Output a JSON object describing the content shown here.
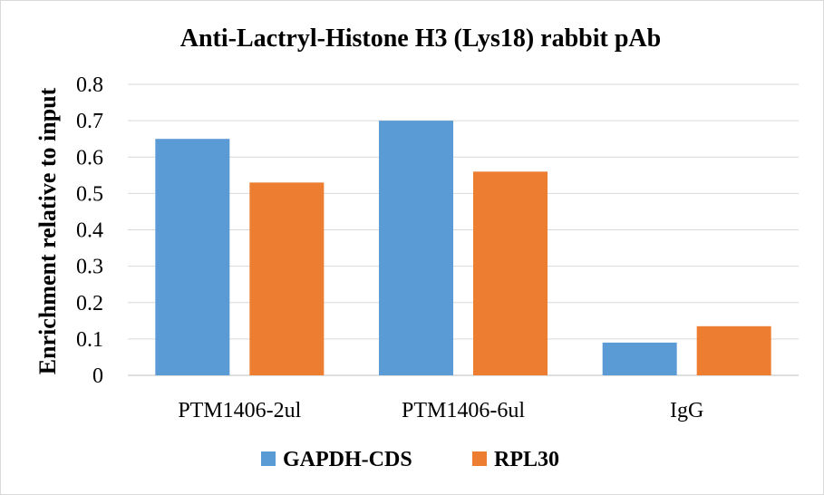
{
  "chart_data": {
    "type": "bar",
    "title": "Anti-Lactryl-Histone H3 (Lys18) rabbit pAb",
    "xlabel": "",
    "ylabel": "Enrichment relative to input",
    "ylim": [
      0,
      0.8
    ],
    "yticks": [
      "0",
      "0.1",
      "0.2",
      "0.3",
      "0.4",
      "0.5",
      "0.6",
      "0.7",
      "0.8"
    ],
    "categories": [
      "PTM1406-2ul",
      "PTM1406-6ul",
      "IgG"
    ],
    "series": [
      {
        "name": "GAPDH-CDS",
        "color": "#5b9bd5",
        "values": [
          0.65,
          0.7,
          0.09
        ]
      },
      {
        "name": "RPL30",
        "color": "#ed7d31",
        "values": [
          0.53,
          0.56,
          0.135
        ]
      }
    ],
    "grid": true,
    "legend_position": "bottom"
  }
}
